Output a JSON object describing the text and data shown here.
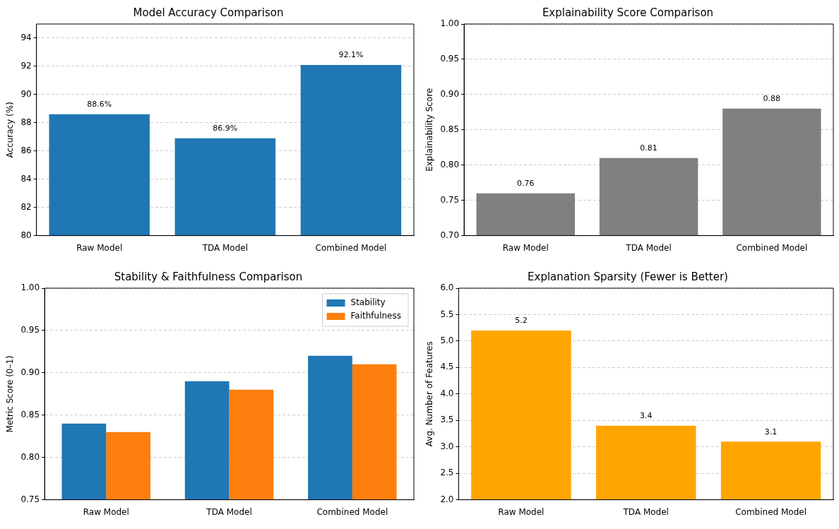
{
  "chart_data": [
    {
      "type": "bar",
      "title": "Model Accuracy Comparison",
      "ylabel": "Accuracy (%)",
      "categories": [
        "Raw Model",
        "TDA Model",
        "Combined Model"
      ],
      "values": [
        88.6,
        86.9,
        92.1
      ],
      "color": "#1f77b4",
      "value_labels": [
        "88.6%",
        "86.9%",
        "92.1%"
      ],
      "ylim": [
        80,
        95
      ],
      "yticks": [
        80,
        82,
        84,
        86,
        88,
        90,
        92,
        94
      ],
      "grid": "y"
    },
    {
      "type": "bar",
      "title": "Explainability Score Comparison",
      "ylabel": "Explainability Score",
      "categories": [
        "Raw Model",
        "TDA Model",
        "Combined Model"
      ],
      "values": [
        0.76,
        0.81,
        0.88
      ],
      "color": "#808080",
      "data_labels": true,
      "ylim": [
        0.7,
        1.0
      ],
      "yticks": [
        {
          "value": 0.7,
          "label": "0.70"
        },
        {
          "value": 0.75,
          "label": "0.75"
        },
        {
          "value": 0.8,
          "label": "0.80"
        },
        {
          "value": 0.85,
          "label": "0.85"
        },
        {
          "value": 0.9,
          "label": "0.90"
        },
        {
          "value": 0.95,
          "label": "0.95"
        },
        {
          "value": 1.0,
          "label": "1.00"
        }
      ],
      "grid": "y"
    },
    {
      "type": "bar",
      "title": "Stability & Faithfulness Comparison",
      "ylabel": "Metric Score (0–1)",
      "categories": [
        "Raw Model",
        "TDA Model",
        "Combined Model"
      ],
      "series": [
        {
          "name": "Stability",
          "color": "#1f77b4",
          "values": [
            0.84,
            0.89,
            0.92
          ]
        },
        {
          "name": "Faithfulness",
          "color": "#ff7f0e",
          "values": [
            0.83,
            0.88,
            0.91
          ]
        }
      ],
      "ylim": [
        0.75,
        1.0
      ],
      "yticks": [
        {
          "value": 0.75,
          "label": "0.75"
        },
        {
          "value": 0.8,
          "label": "0.80"
        },
        {
          "value": 0.85,
          "label": "0.85"
        },
        {
          "value": 0.9,
          "label": "0.90"
        },
        {
          "value": 0.95,
          "label": "0.95"
        },
        {
          "value": 1.0,
          "label": "1.00"
        }
      ],
      "grid": "y",
      "legend": "top right"
    },
    {
      "type": "bar",
      "title": "Explanation Sparsity (Fewer is Better)",
      "ylabel": "Avg. Number of Features",
      "categories": [
        "Raw Model",
        "TDA Model",
        "Combined Model"
      ],
      "values": [
        5.2,
        3.4,
        3.1
      ],
      "color": "#ffa500",
      "data_labels": true,
      "ylim": [
        2.0,
        6.0
      ],
      "yticks": [
        {
          "value": 2,
          "label": "2.0"
        },
        {
          "value": 2.5,
          "label": "2.5"
        },
        {
          "value": 3,
          "label": "3.0"
        },
        {
          "value": 3.5,
          "label": "3.5"
        },
        {
          "value": 4,
          "label": "4.0"
        },
        {
          "value": 4.5,
          "label": "4.5"
        },
        {
          "value": 5,
          "label": "5.0"
        },
        {
          "value": 5.5,
          "label": "5.5"
        },
        {
          "value": 6,
          "label": "6.0"
        }
      ],
      "grid": "y"
    }
  ]
}
